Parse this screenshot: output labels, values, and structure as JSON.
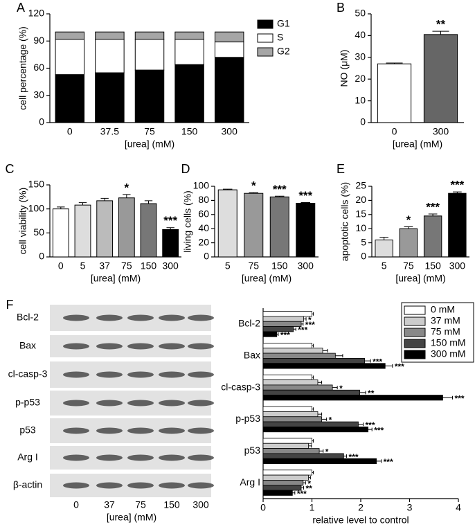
{
  "chart_data": [
    {
      "type": "stacked_bar",
      "panel": "A",
      "categories": [
        "0",
        "37.5",
        "75",
        "150",
        "300"
      ],
      "xlabel": "[urea] (mM)",
      "ylabel": "cell percentage (%)",
      "ylim": [
        0,
        120
      ],
      "yticks": [
        0,
        30,
        60,
        90,
        120
      ],
      "legend": "right",
      "series": [
        {
          "name": "G1",
          "color": "#000000",
          "values": [
            53,
            55,
            58,
            64,
            72
          ]
        },
        {
          "name": "S",
          "color": "#ffffff",
          "values": [
            39,
            37,
            34,
            28,
            17
          ]
        },
        {
          "name": "G2",
          "color": "#a6a6a6",
          "values": [
            8,
            8,
            8,
            8,
            11
          ]
        }
      ]
    },
    {
      "type": "bar",
      "panel": "B",
      "categories": [
        "0",
        "300"
      ],
      "values": [
        27,
        40.5
      ],
      "errors": [
        0.4,
        1.5
      ],
      "colors": [
        "#ffffff",
        "#666666"
      ],
      "annotations": [
        null,
        "**"
      ],
      "xlabel": "[urea] (mM)",
      "ylabel": "NO (μM)",
      "ylim": [
        0,
        50
      ],
      "yticks": [
        0,
        10,
        20,
        30,
        40,
        50
      ]
    },
    {
      "type": "bar",
      "panel": "C",
      "categories": [
        "0",
        "5",
        "37",
        "75",
        "150",
        "300"
      ],
      "values": [
        100,
        108,
        117,
        123,
        111,
        57
      ],
      "errors": [
        4,
        5,
        5,
        7,
        6,
        4
      ],
      "colors": [
        "#ffffff",
        "#dddddd",
        "#bbbbbb",
        "#999999",
        "#777777",
        "#000000"
      ],
      "annotations": [
        null,
        null,
        null,
        "*",
        null,
        "***"
      ],
      "xlabel": "[urea] (mM)",
      "ylabel": "cell viability (%)",
      "ylim": [
        0,
        150
      ],
      "yticks": [
        0,
        50,
        100,
        150
      ]
    },
    {
      "type": "bar",
      "panel": "D",
      "categories": [
        "5",
        "75",
        "150",
        "300"
      ],
      "values": [
        95,
        90,
        85,
        76
      ],
      "errors": [
        1,
        1,
        1,
        1
      ],
      "colors": [
        "#dddddd",
        "#999999",
        "#777777",
        "#000000"
      ],
      "annotations": [
        null,
        "*",
        "***",
        "***"
      ],
      "xlabel": "[urea] (mM)",
      "ylabel": "living cells (%)",
      "ylim": [
        0,
        100
      ],
      "yticks": [
        0,
        20,
        40,
        60,
        80,
        100
      ]
    },
    {
      "type": "bar",
      "panel": "E",
      "categories": [
        "5",
        "75",
        "150",
        "300"
      ],
      "values": [
        6,
        10,
        14.5,
        22.5
      ],
      "errors": [
        1,
        0.7,
        0.7,
        0.5
      ],
      "colors": [
        "#dddddd",
        "#999999",
        "#777777",
        "#000000"
      ],
      "annotations": [
        null,
        "*",
        "***",
        "***"
      ],
      "xlabel": "[urea] (mM)",
      "ylabel": "apoptotic cells (%)",
      "ylim": [
        0,
        25
      ],
      "yticks": [
        0,
        5,
        10,
        15,
        20,
        25
      ]
    },
    {
      "type": "hbar",
      "categories": [
        "Bcl-2",
        "Bax",
        "cl-casp-3",
        "p-p53",
        "p53",
        "Arg I"
      ],
      "xlabel": "relative level to control",
      "xlim": [
        0,
        4
      ],
      "xticks": [
        0,
        1,
        2,
        3,
        4
      ],
      "legend": "top-right",
      "series": [
        {
          "name": "0 mM",
          "color": "#ffffff",
          "values": [
            1,
            1,
            1,
            1,
            1,
            1
          ],
          "errors": [
            0.03,
            0.03,
            0.03,
            0.03,
            0.03,
            0.03
          ],
          "annotations": [
            null,
            null,
            null,
            null,
            null,
            null
          ]
        },
        {
          "name": "37 mM",
          "color": "#cccccc",
          "values": [
            0.83,
            1.22,
            1.12,
            1.12,
            0.93,
            0.93
          ],
          "errors": [
            0.05,
            0.1,
            0.08,
            0.08,
            0.06,
            0.04
          ],
          "annotations": [
            "*",
            null,
            null,
            null,
            null,
            null
          ]
        },
        {
          "name": "75 mM",
          "color": "#888888",
          "values": [
            0.78,
            1.48,
            1.42,
            1.2,
            1.15,
            0.82
          ],
          "errors": [
            0.04,
            0.15,
            0.1,
            0.1,
            0.08,
            0.05
          ],
          "annotations": [
            "***",
            null,
            "*",
            "*",
            "*",
            "*"
          ]
        },
        {
          "name": "150 mM",
          "color": "#444444",
          "values": [
            0.62,
            2.08,
            1.98,
            1.95,
            1.65,
            0.78
          ],
          "errors": [
            0.05,
            0.12,
            0.12,
            0.1,
            0.06,
            0.05
          ],
          "annotations": [
            "***",
            "***",
            "**",
            "***",
            "***",
            "**"
          ]
        },
        {
          "name": "300 mM",
          "color": "#000000",
          "values": [
            0.28,
            2.5,
            3.68,
            2.15,
            2.32,
            0.6
          ],
          "errors": [
            0.03,
            0.15,
            0.2,
            0.08,
            0.1,
            0.05
          ],
          "annotations": [
            "***",
            "***",
            "***",
            "***",
            "***",
            "***"
          ]
        }
      ]
    }
  ],
  "blot": {
    "panel": "F",
    "rows": [
      "Bcl-2",
      "Bax",
      "cl-casp-3",
      "p-p53",
      "p53",
      "Arg I",
      "β-actin"
    ],
    "lanes": [
      "0",
      "37",
      "75",
      "150",
      "300"
    ],
    "xlabel": "[urea] (mM)"
  }
}
